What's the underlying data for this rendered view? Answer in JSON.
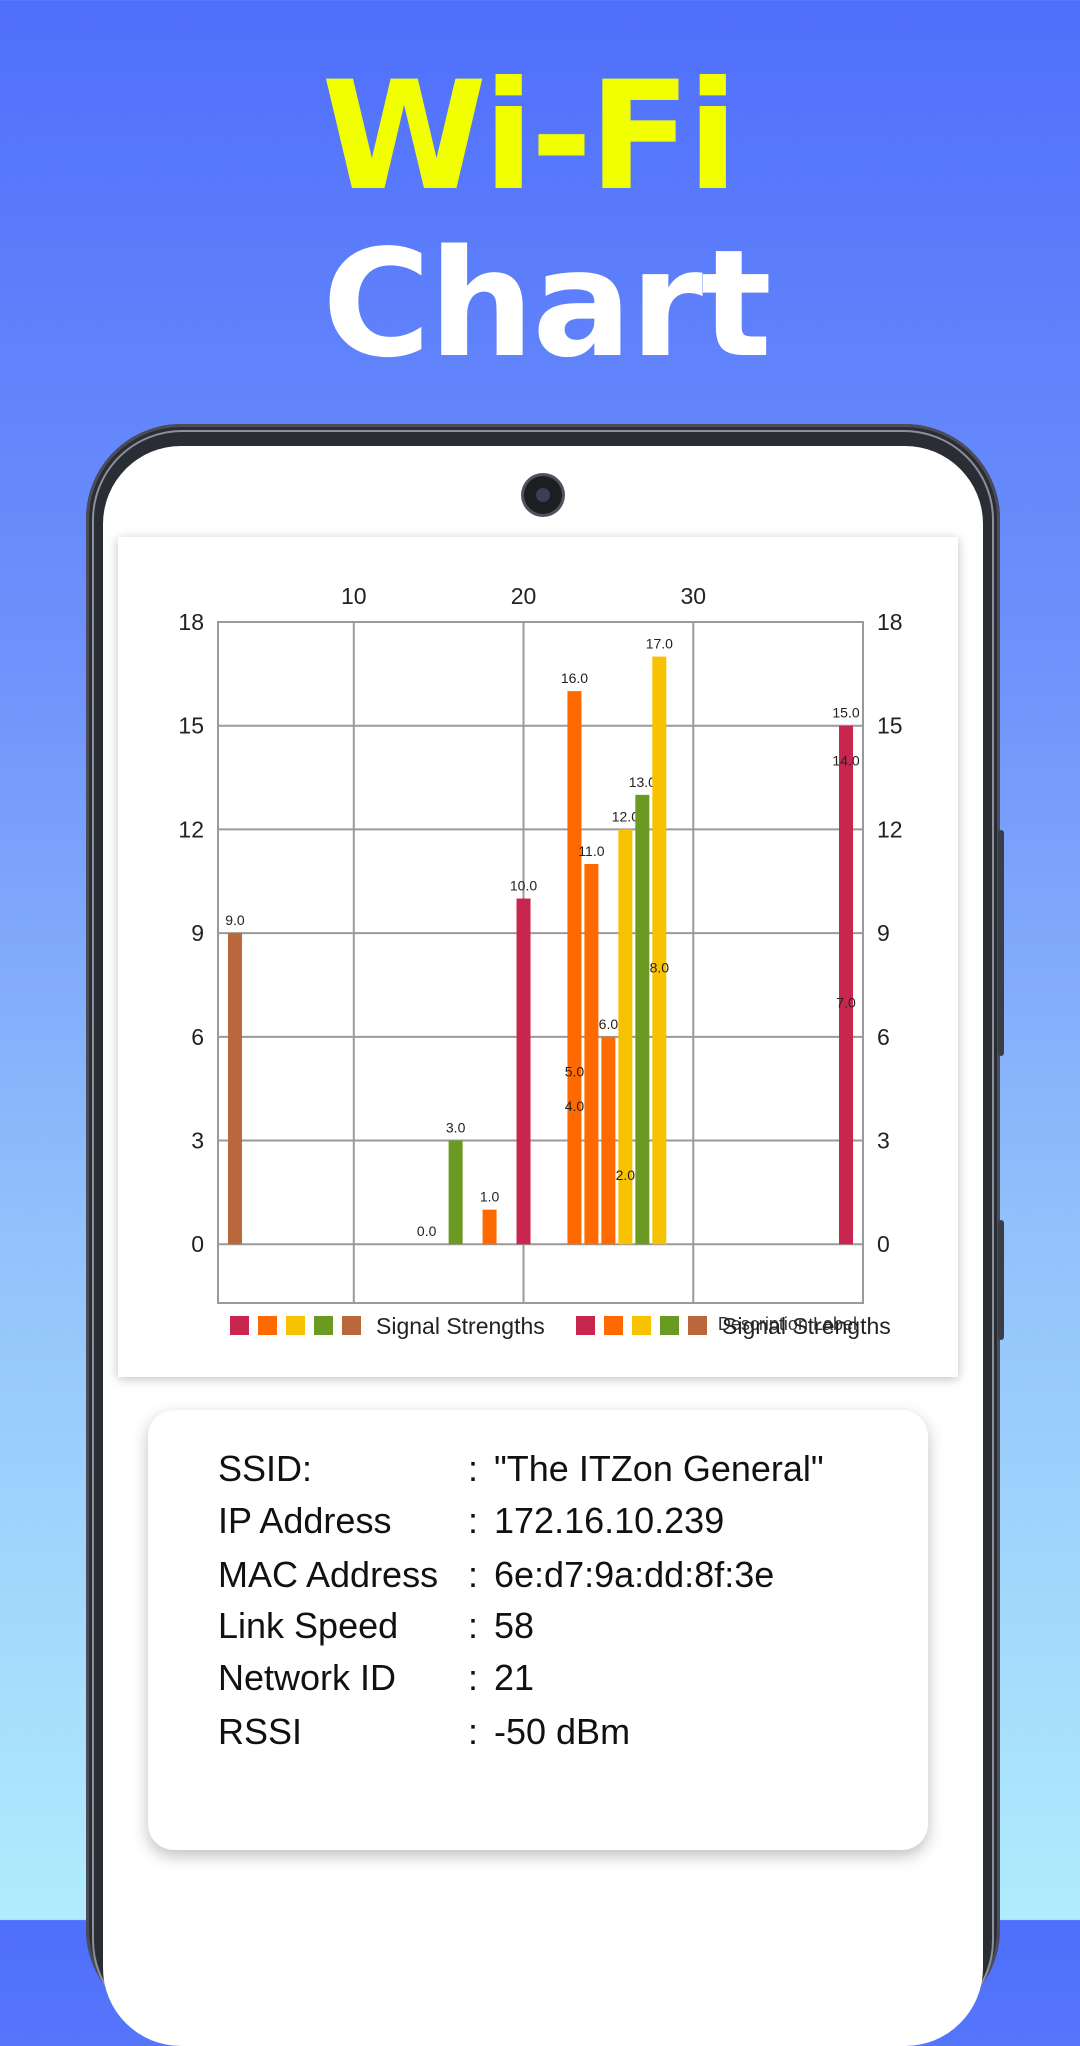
{
  "promo": {
    "title_line1": "Wi-Fi",
    "title_line2": "Chart"
  },
  "colors": {
    "title_yellow": "#f2ff00",
    "series": [
      "#c8254f",
      "#ff6a00",
      "#f7c200",
      "#6b9a22",
      "#b8683a"
    ]
  },
  "chart_data": {
    "type": "bar",
    "x_top_ticks": [
      "10",
      "20",
      "30"
    ],
    "x_top_tick_values": [
      10,
      20,
      30
    ],
    "xlim": [
      2,
      40
    ],
    "y_ticks_left": [
      "0",
      "3",
      "6",
      "9",
      "12",
      "15",
      "18"
    ],
    "y_ticks_right": [
      "0",
      "3",
      "6",
      "9",
      "12",
      "15",
      "18"
    ],
    "ylim": [
      -1.7,
      18
    ],
    "grid": true,
    "description_label": "Description Label",
    "legend": [
      {
        "name": "Signal Strengths",
        "colors": [
          "#c8254f",
          "#ff6a00",
          "#f7c200",
          "#6b9a22",
          "#b8683a"
        ]
      },
      {
        "name": "Signal Strengths",
        "colors": [
          "#c8254f",
          "#ff6a00",
          "#f7c200",
          "#6b9a22",
          "#b8683a"
        ]
      }
    ],
    "bars": [
      {
        "x": 3,
        "value": 9,
        "label": "9.0",
        "color": "#b8683a"
      },
      {
        "x": 15,
        "value": 0,
        "label": "0.0",
        "color": "#6b9a22"
      },
      {
        "x": 16,
        "value": 3,
        "label": "3.0",
        "color": "#6b9a22"
      },
      {
        "x": 18,
        "value": 1,
        "label": "1.0",
        "color": "#ff6a00"
      },
      {
        "x": 20,
        "value": 10,
        "label": "10.0",
        "color": "#c8254f"
      },
      {
        "x": 23,
        "value": 16,
        "label": "16.0",
        "color": "#ff6a00"
      },
      {
        "x": 24,
        "value": 11,
        "label": "11.0",
        "color": "#ff6a00"
      },
      {
        "x": 25,
        "value": 6,
        "label": "6.0",
        "color": "#ff6a00"
      },
      {
        "x": 26,
        "value": 12,
        "label": "12.0",
        "color": "#f7c200"
      },
      {
        "x": 27,
        "value": 13,
        "label": "13.0",
        "color": "#6b9a22"
      },
      {
        "x": 28,
        "value": 17,
        "label": "17.0",
        "color": "#f7c200"
      },
      {
        "x": 39,
        "value": 15,
        "label": "15.0",
        "color": "#c8254f"
      }
    ],
    "inner_labels": [
      {
        "x": 23,
        "value": 5,
        "label": "5.0"
      },
      {
        "x": 23,
        "value": 4,
        "label": "4.0"
      },
      {
        "x": 26,
        "value": 2,
        "label": "2.0"
      },
      {
        "x": 28,
        "value": 8,
        "label": "8.0"
      },
      {
        "x": 39,
        "value": 14,
        "label": "14.0"
      },
      {
        "x": 39,
        "value": 7,
        "label": "7.0"
      }
    ]
  },
  "info": {
    "rows": [
      {
        "label": "SSID:",
        "sep": ":",
        "value": "\"The ITZon General\""
      },
      {
        "label": "IP Address",
        "sep": ":",
        "value": "172.16.10.239"
      },
      {
        "label": "MAC Address",
        "sep": ":",
        "value": "6e:d7:9a:dd:8f:3e"
      },
      {
        "label": "Link Speed",
        "sep": ":",
        "value": "58"
      },
      {
        "label": "Network ID",
        "sep": ":",
        "value": "21"
      },
      {
        "label": "RSSI",
        "sep": ":",
        "value": "-50 dBm"
      }
    ]
  }
}
